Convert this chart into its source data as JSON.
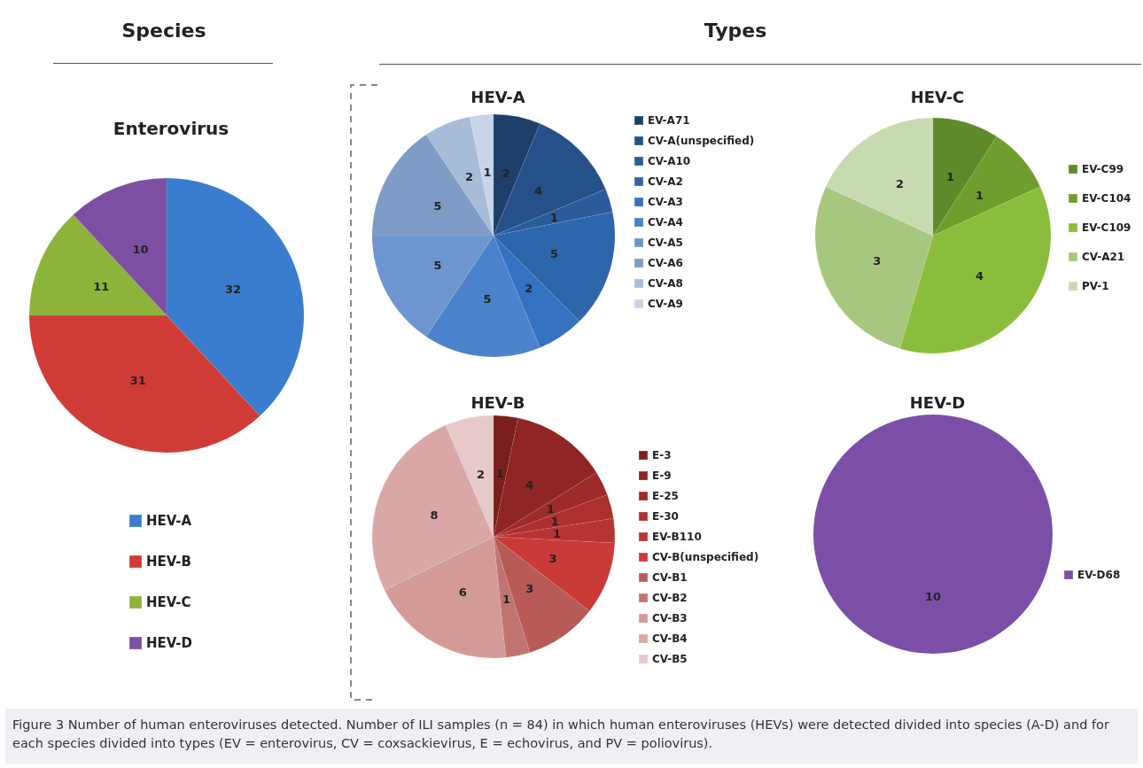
{
  "chart_data": [
    {
      "type": "pie",
      "title": "Enterovirus",
      "legend": "bottom",
      "data_labels": true,
      "annotations": [
        "Species",
        "Figure 3 Number of human enteroviruses detected. Number of ILI samples (n = 84) in which human enteroviruses (HEVs) were detected divided into species (A-D) and for each species divided into types (EV = enterovirus, CV = coxsackievirus, E = echovirus, and PV = poliovirus)."
      ],
      "categories": [
        "HEV-A",
        "HEV-B",
        "HEV-C",
        "HEV-D"
      ],
      "values": [
        32,
        31,
        11,
        10
      ],
      "colors": [
        "#3a7dce",
        "#d13b36",
        "#8cb33a",
        "#7d4fa3"
      ]
    },
    {
      "type": "pie",
      "title": "HEV-A",
      "legend": "right",
      "data_labels": true,
      "annotations": [
        "Types"
      ],
      "categories": [
        "EV-A71",
        "CV-A(unspecified)",
        "CV-A10",
        "CV-A2",
        "CV-A3",
        "CV-A4",
        "CV-A5",
        "CV-A6",
        "CV-A8",
        "CV-A9"
      ],
      "values": [
        2,
        4,
        1,
        5,
        2,
        5,
        5,
        5,
        2,
        1
      ],
      "colors": [
        "#1f3f6b",
        "#25508a",
        "#2a5c9c",
        "#2e66ae",
        "#3471c0",
        "#4c82cc",
        "#6d96d0",
        "#7e9cc5",
        "#a7bcd9",
        "#c8d4e8"
      ]
    },
    {
      "type": "pie",
      "title": "HEV-C",
      "legend": "right",
      "data_labels": true,
      "categories": [
        "EV-C99",
        "EV-C104",
        "EV-C109",
        "CV-A21",
        "PV-1"
      ],
      "values": [
        1,
        1,
        4,
        3,
        2
      ],
      "colors": [
        "#5e8a2a",
        "#6f9e2e",
        "#8bbd3c",
        "#a8c77e",
        "#c8dbb0"
      ]
    },
    {
      "type": "pie",
      "title": "HEV-B",
      "legend": "right",
      "data_labels": true,
      "categories": [
        "E-3",
        "E-9",
        "E-25",
        "E-30",
        "EV-B110",
        "CV-B(unspecified)",
        "CV-B1",
        "CV-B2",
        "CV-B3",
        "CV-B4",
        "CV-B5"
      ],
      "values": [
        1,
        4,
        1,
        1,
        1,
        3,
        3,
        1,
        6,
        8,
        2
      ],
      "colors": [
        "#7a1f1e",
        "#8f2524",
        "#9e2a29",
        "#ad2f2e",
        "#b83433",
        "#c93a38",
        "#b85a58",
        "#c07472",
        "#d49a98",
        "#d9a8a6",
        "#e6c9c8"
      ]
    },
    {
      "type": "pie",
      "title": "HEV-D",
      "legend": "right",
      "data_labels": true,
      "categories": [
        "EV-D68"
      ],
      "values": [
        10
      ],
      "colors": [
        "#7b4fa8"
      ]
    }
  ]
}
